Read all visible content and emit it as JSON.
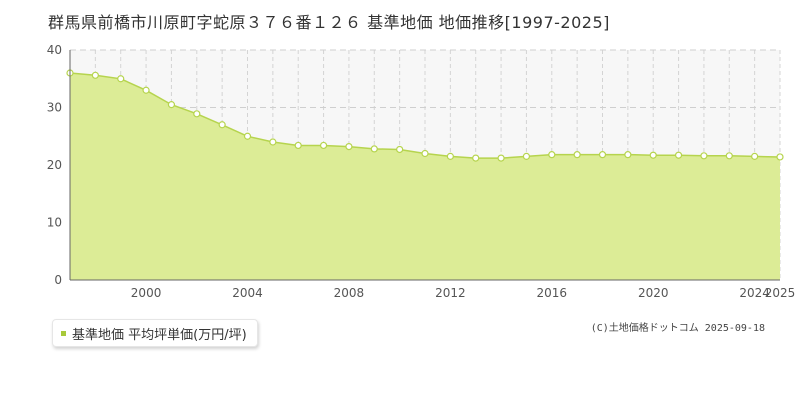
{
  "title": "群馬県前橋市川原町字蛇原３７６番１２６ 基準地価 地価推移[1997-2025]",
  "legend": {
    "label": "基準地価 平均坪単価(万円/坪)",
    "color": "#a8c93a"
  },
  "credit": "(C)土地価格ドットコム 2025-09-18",
  "chart_data": {
    "type": "area",
    "x": [
      1997,
      1998,
      1999,
      2000,
      2001,
      2002,
      2003,
      2004,
      2005,
      2006,
      2007,
      2008,
      2009,
      2010,
      2011,
      2012,
      2013,
      2014,
      2015,
      2016,
      2017,
      2018,
      2019,
      2020,
      2021,
      2022,
      2023,
      2024,
      2025
    ],
    "series": [
      {
        "name": "基準地価 平均坪単価(万円/坪)",
        "values": [
          36.0,
          35.6,
          35.0,
          33.0,
          30.5,
          28.9,
          27.0,
          25.0,
          24.0,
          23.4,
          23.4,
          23.2,
          22.8,
          22.7,
          22.0,
          21.5,
          21.2,
          21.2,
          21.5,
          21.8,
          21.8,
          21.8,
          21.8,
          21.7,
          21.7,
          21.6,
          21.6,
          21.5,
          21.4
        ],
        "fill": "#dcec96",
        "stroke": "#b6d44e"
      }
    ],
    "xticks": [
      2000,
      2004,
      2008,
      2012,
      2016,
      2020,
      2024,
      2025
    ],
    "yticks": [
      0,
      10,
      20,
      30,
      40
    ],
    "xlim": [
      1997,
      2025
    ],
    "ylim": [
      0,
      40
    ],
    "grid": true
  }
}
